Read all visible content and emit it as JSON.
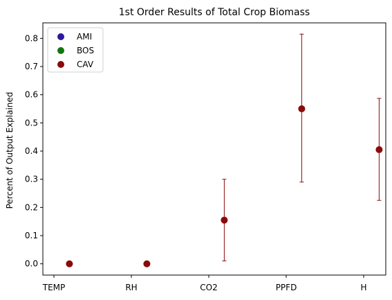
{
  "chart_data": {
    "type": "scatter",
    "title": "1st Order Results of Total Crop Biomass",
    "xlabel": "",
    "ylabel": "Percent of Output Explained",
    "categories": [
      "TEMP",
      "RH",
      "CO2",
      "PPFD",
      "H"
    ],
    "ylim": [
      -0.04,
      0.855
    ],
    "yticks": [
      0.0,
      0.1,
      0.2,
      0.3,
      0.4,
      0.5,
      0.6,
      0.7,
      0.8
    ],
    "ytick_labels": [
      "0.0",
      "0.1",
      "0.2",
      "0.3",
      "0.4",
      "0.5",
      "0.6",
      "0.7",
      "0.8"
    ],
    "grid": false,
    "legend_position": "top-left",
    "series": [
      {
        "name": "AMI",
        "color": "#2b1a9c",
        "values": [
          null,
          null,
          null,
          null,
          null
        ]
      },
      {
        "name": "BOS",
        "color": "#13760f",
        "values": [
          null,
          null,
          null,
          null,
          null
        ]
      },
      {
        "name": "CAV",
        "color": "#8b0a0a",
        "values": [
          0.0,
          0.0,
          0.155,
          0.55,
          0.405
        ],
        "lower": [
          0.0,
          0.0,
          0.01,
          0.29,
          0.225
        ],
        "upper": [
          0.0,
          0.0,
          0.3,
          0.815,
          0.587
        ],
        "x_offset_fraction": 0.2
      }
    ]
  }
}
